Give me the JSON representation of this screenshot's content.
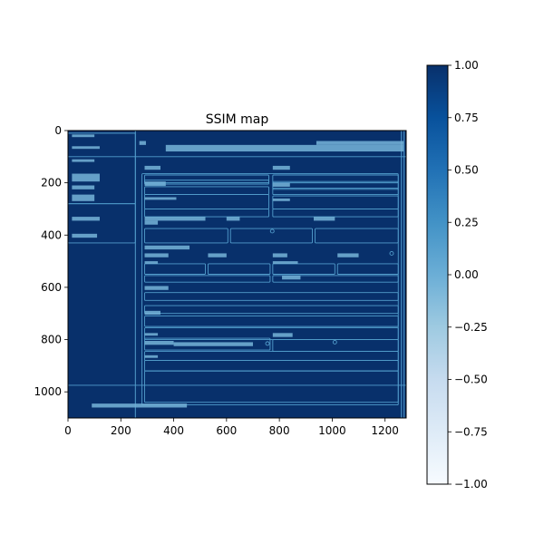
{
  "chart_data": {
    "type": "heatmap",
    "title": "SSIM map",
    "xlabel": "",
    "ylabel": "",
    "xlim": [
      0,
      1280
    ],
    "ylim": [
      0,
      1100
    ],
    "x_ticks": [
      0,
      200,
      400,
      600,
      800,
      1000,
      1200
    ],
    "y_ticks": [
      0,
      200,
      400,
      600,
      800,
      1000
    ],
    "x_tick_labels": [
      "0",
      "200",
      "400",
      "600",
      "800",
      "1000",
      "1200"
    ],
    "y_tick_labels": [
      "0",
      "200",
      "400",
      "600",
      "800",
      "1000"
    ],
    "colormap": "Blues",
    "colorbar": {
      "vmin": -1.0,
      "vmax": 1.0,
      "ticks": [
        1.0,
        0.75,
        0.5,
        0.25,
        0.0,
        -0.25,
        -0.5,
        -0.75,
        -1.0
      ],
      "tick_labels": [
        "1.00",
        "0.75",
        "0.50",
        "0.25",
        "0.00",
        "−0.25",
        "−0.50",
        "−0.75",
        "−1.00"
      ]
    },
    "background_value": 1.0,
    "structure_value": 0.15,
    "features": {
      "vlines": [
        {
          "x": 255,
          "y0": 0,
          "y1": 1100
        },
        {
          "x": 1262,
          "y0": 0,
          "y1": 1100
        },
        {
          "x": 1272,
          "y0": 0,
          "y1": 1100
        }
      ],
      "hlines": [
        {
          "y": 100,
          "x0": 0,
          "x1": 1280
        },
        {
          "y": 975,
          "x0": 0,
          "x1": 1280
        }
      ],
      "rects": [
        [
          280,
          165,
          1250,
          1050
        ],
        [
          0,
          10,
          255,
          280
        ],
        [
          0,
          280,
          255,
          430
        ],
        [
          290,
          170,
          760,
          200
        ],
        [
          775,
          170,
          1250,
          200
        ],
        [
          290,
          190,
          760,
          205
        ],
        [
          775,
          195,
          1250,
          225
        ],
        [
          290,
          215,
          760,
          245
        ],
        [
          775,
          220,
          1250,
          245
        ],
        [
          290,
          245,
          760,
          300
        ],
        [
          775,
          250,
          1250,
          300
        ],
        [
          290,
          300,
          760,
          330
        ],
        [
          775,
          300,
          1250,
          330
        ],
        [
          290,
          375,
          605,
          430
        ],
        [
          615,
          375,
          925,
          430
        ],
        [
          935,
          375,
          1250,
          430
        ],
        [
          290,
          510,
          520,
          550
        ],
        [
          530,
          510,
          765,
          550
        ],
        [
          775,
          510,
          1010,
          550
        ],
        [
          1020,
          510,
          1250,
          550
        ],
        [
          290,
          555,
          765,
          580
        ],
        [
          775,
          555,
          1250,
          580
        ],
        [
          290,
          620,
          1250,
          650
        ],
        [
          290,
          670,
          1250,
          700
        ],
        [
          290,
          710,
          1250,
          750
        ],
        [
          290,
          755,
          1250,
          800
        ],
        [
          290,
          795,
          765,
          840
        ],
        [
          775,
          800,
          1250,
          845
        ],
        [
          290,
          845,
          1250,
          880
        ],
        [
          290,
          880,
          1250,
          920
        ],
        [
          290,
          920,
          1250,
          1040
        ]
      ],
      "text_blocks": [
        [
          15,
          15,
          100,
          25
        ],
        [
          15,
          60,
          120,
          70
        ],
        [
          15,
          110,
          100,
          120
        ],
        [
          15,
          165,
          120,
          195
        ],
        [
          15,
          210,
          100,
          225
        ],
        [
          15,
          245,
          100,
          270
        ],
        [
          15,
          330,
          120,
          345
        ],
        [
          15,
          395,
          110,
          410
        ],
        [
          270,
          40,
          295,
          55
        ],
        [
          370,
          55,
          1270,
          80
        ],
        [
          940,
          40,
          1270,
          55
        ],
        [
          290,
          135,
          350,
          150
        ],
        [
          775,
          135,
          840,
          150
        ],
        [
          290,
          195,
          370,
          212
        ],
        [
          775,
          200,
          840,
          215
        ],
        [
          290,
          255,
          410,
          265
        ],
        [
          775,
          260,
          840,
          270
        ],
        [
          290,
          330,
          520,
          345
        ],
        [
          600,
          330,
          650,
          345
        ],
        [
          930,
          330,
          1010,
          345
        ],
        [
          290,
          345,
          340,
          360
        ],
        [
          290,
          440,
          460,
          455
        ],
        [
          290,
          470,
          380,
          485
        ],
        [
          530,
          470,
          600,
          485
        ],
        [
          775,
          470,
          830,
          485
        ],
        [
          1020,
          470,
          1100,
          485
        ],
        [
          290,
          500,
          340,
          510
        ],
        [
          775,
          500,
          870,
          510
        ],
        [
          810,
          555,
          880,
          570
        ],
        [
          290,
          595,
          380,
          610
        ],
        [
          290,
          690,
          350,
          705
        ],
        [
          290,
          775,
          340,
          785
        ],
        [
          775,
          775,
          850,
          790
        ],
        [
          290,
          805,
          400,
          820
        ],
        [
          400,
          810,
          700,
          825
        ],
        [
          290,
          860,
          340,
          870
        ],
        [
          90,
          1045,
          450,
          1060
        ]
      ],
      "dots": [
        {
          "x": 773,
          "y": 385
        },
        {
          "x": 1225,
          "y": 470
        },
        {
          "x": 755,
          "y": 815
        },
        {
          "x": 1010,
          "y": 810
        }
      ]
    }
  }
}
